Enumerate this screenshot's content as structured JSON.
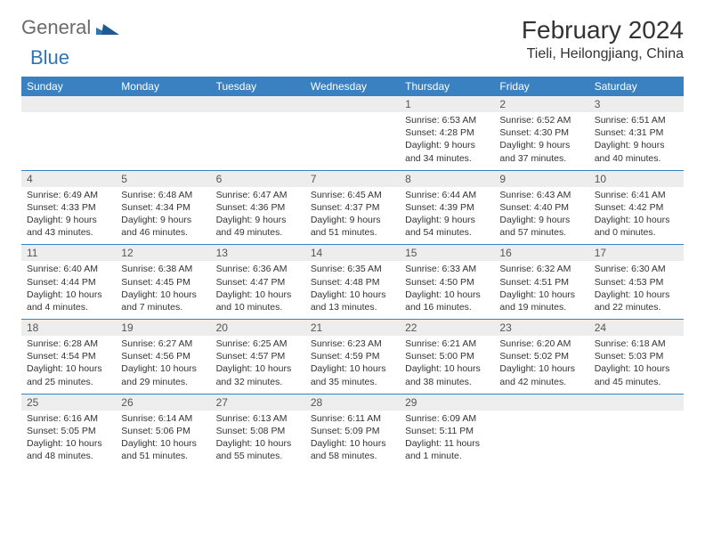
{
  "logo": {
    "general": "General",
    "blue": "Blue"
  },
  "header": {
    "month": "February 2024",
    "location": "Tieli, Heilongjiang, China"
  },
  "colors": {
    "header_bg": "#3a81c2",
    "header_text": "#ffffff",
    "daynum_bg": "#ededed",
    "separator": "#3a81c2",
    "logo_gray": "#6b6b6b",
    "logo_blue": "#2e75b6"
  },
  "daynames": [
    "Sunday",
    "Monday",
    "Tuesday",
    "Wednesday",
    "Thursday",
    "Friday",
    "Saturday"
  ],
  "weeks": [
    [
      null,
      null,
      null,
      null,
      {
        "n": "1",
        "sr": "Sunrise: 6:53 AM",
        "ss": "Sunset: 4:28 PM",
        "dl": "Daylight: 9 hours and 34 minutes."
      },
      {
        "n": "2",
        "sr": "Sunrise: 6:52 AM",
        "ss": "Sunset: 4:30 PM",
        "dl": "Daylight: 9 hours and 37 minutes."
      },
      {
        "n": "3",
        "sr": "Sunrise: 6:51 AM",
        "ss": "Sunset: 4:31 PM",
        "dl": "Daylight: 9 hours and 40 minutes."
      }
    ],
    [
      {
        "n": "4",
        "sr": "Sunrise: 6:49 AM",
        "ss": "Sunset: 4:33 PM",
        "dl": "Daylight: 9 hours and 43 minutes."
      },
      {
        "n": "5",
        "sr": "Sunrise: 6:48 AM",
        "ss": "Sunset: 4:34 PM",
        "dl": "Daylight: 9 hours and 46 minutes."
      },
      {
        "n": "6",
        "sr": "Sunrise: 6:47 AM",
        "ss": "Sunset: 4:36 PM",
        "dl": "Daylight: 9 hours and 49 minutes."
      },
      {
        "n": "7",
        "sr": "Sunrise: 6:45 AM",
        "ss": "Sunset: 4:37 PM",
        "dl": "Daylight: 9 hours and 51 minutes."
      },
      {
        "n": "8",
        "sr": "Sunrise: 6:44 AM",
        "ss": "Sunset: 4:39 PM",
        "dl": "Daylight: 9 hours and 54 minutes."
      },
      {
        "n": "9",
        "sr": "Sunrise: 6:43 AM",
        "ss": "Sunset: 4:40 PM",
        "dl": "Daylight: 9 hours and 57 minutes."
      },
      {
        "n": "10",
        "sr": "Sunrise: 6:41 AM",
        "ss": "Sunset: 4:42 PM",
        "dl": "Daylight: 10 hours and 0 minutes."
      }
    ],
    [
      {
        "n": "11",
        "sr": "Sunrise: 6:40 AM",
        "ss": "Sunset: 4:44 PM",
        "dl": "Daylight: 10 hours and 4 minutes."
      },
      {
        "n": "12",
        "sr": "Sunrise: 6:38 AM",
        "ss": "Sunset: 4:45 PM",
        "dl": "Daylight: 10 hours and 7 minutes."
      },
      {
        "n": "13",
        "sr": "Sunrise: 6:36 AM",
        "ss": "Sunset: 4:47 PM",
        "dl": "Daylight: 10 hours and 10 minutes."
      },
      {
        "n": "14",
        "sr": "Sunrise: 6:35 AM",
        "ss": "Sunset: 4:48 PM",
        "dl": "Daylight: 10 hours and 13 minutes."
      },
      {
        "n": "15",
        "sr": "Sunrise: 6:33 AM",
        "ss": "Sunset: 4:50 PM",
        "dl": "Daylight: 10 hours and 16 minutes."
      },
      {
        "n": "16",
        "sr": "Sunrise: 6:32 AM",
        "ss": "Sunset: 4:51 PM",
        "dl": "Daylight: 10 hours and 19 minutes."
      },
      {
        "n": "17",
        "sr": "Sunrise: 6:30 AM",
        "ss": "Sunset: 4:53 PM",
        "dl": "Daylight: 10 hours and 22 minutes."
      }
    ],
    [
      {
        "n": "18",
        "sr": "Sunrise: 6:28 AM",
        "ss": "Sunset: 4:54 PM",
        "dl": "Daylight: 10 hours and 25 minutes."
      },
      {
        "n": "19",
        "sr": "Sunrise: 6:27 AM",
        "ss": "Sunset: 4:56 PM",
        "dl": "Daylight: 10 hours and 29 minutes."
      },
      {
        "n": "20",
        "sr": "Sunrise: 6:25 AM",
        "ss": "Sunset: 4:57 PM",
        "dl": "Daylight: 10 hours and 32 minutes."
      },
      {
        "n": "21",
        "sr": "Sunrise: 6:23 AM",
        "ss": "Sunset: 4:59 PM",
        "dl": "Daylight: 10 hours and 35 minutes."
      },
      {
        "n": "22",
        "sr": "Sunrise: 6:21 AM",
        "ss": "Sunset: 5:00 PM",
        "dl": "Daylight: 10 hours and 38 minutes."
      },
      {
        "n": "23",
        "sr": "Sunrise: 6:20 AM",
        "ss": "Sunset: 5:02 PM",
        "dl": "Daylight: 10 hours and 42 minutes."
      },
      {
        "n": "24",
        "sr": "Sunrise: 6:18 AM",
        "ss": "Sunset: 5:03 PM",
        "dl": "Daylight: 10 hours and 45 minutes."
      }
    ],
    [
      {
        "n": "25",
        "sr": "Sunrise: 6:16 AM",
        "ss": "Sunset: 5:05 PM",
        "dl": "Daylight: 10 hours and 48 minutes."
      },
      {
        "n": "26",
        "sr": "Sunrise: 6:14 AM",
        "ss": "Sunset: 5:06 PM",
        "dl": "Daylight: 10 hours and 51 minutes."
      },
      {
        "n": "27",
        "sr": "Sunrise: 6:13 AM",
        "ss": "Sunset: 5:08 PM",
        "dl": "Daylight: 10 hours and 55 minutes."
      },
      {
        "n": "28",
        "sr": "Sunrise: 6:11 AM",
        "ss": "Sunset: 5:09 PM",
        "dl": "Daylight: 10 hours and 58 minutes."
      },
      {
        "n": "29",
        "sr": "Sunrise: 6:09 AM",
        "ss": "Sunset: 5:11 PM",
        "dl": "Daylight: 11 hours and 1 minute."
      },
      null,
      null
    ]
  ]
}
